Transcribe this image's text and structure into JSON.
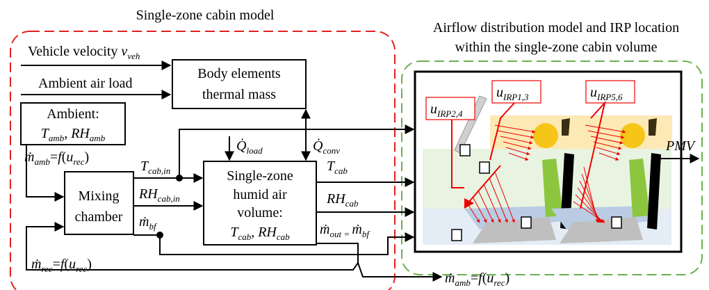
{
  "left_title": "Single-zone cabin model",
  "right_title": [
    "Airflow distribution model and IRP location",
    "within the single-zone cabin volume"
  ],
  "inputs": {
    "velocity": [
      "Vehicle velocity ",
      "v",
      "veh"
    ],
    "air_load": "Ambient air load"
  },
  "body_block": [
    "Body elements",
    "thermal mass"
  ],
  "ambient_block": {
    "heading": "Ambient:",
    "vars": [
      "T",
      "amb",
      ", ",
      "RH",
      "amb"
    ]
  },
  "m_amb_in": [
    "ṁ",
    "amb",
    "=",
    "f",
    "(",
    "u",
    "rec",
    ")"
  ],
  "mixing_block": [
    "Mixing",
    "chamber"
  ],
  "t_cab_in": [
    "T",
    "cab,in"
  ],
  "rh_cab_in": [
    "RH",
    "cab,in"
  ],
  "m_bf": [
    "ṁ",
    "bf"
  ],
  "q_load": [
    "Q̇",
    "load"
  ],
  "q_conv": [
    "Q̇",
    "conv"
  ],
  "humid_block": {
    "lines": [
      "Single-zone",
      "humid air",
      "volume:"
    ],
    "vars": [
      "T",
      "cab",
      ", ",
      "RH",
      "cab"
    ]
  },
  "t_cab": [
    "T",
    "cab"
  ],
  "rh_cab": [
    "RH",
    "cab"
  ],
  "m_out": [
    "ṁ",
    "out",
    " = ",
    "ṁ",
    "bf"
  ],
  "m_rec": [
    "ṁ",
    "rec",
    "=",
    "f",
    "(",
    "u",
    "rec",
    ")"
  ],
  "m_amb_out": [
    "ṁ",
    "amb",
    "=",
    "f",
    "(",
    "u",
    "rec",
    ")"
  ],
  "irp": {
    "a": [
      "u",
      "IRP2,4"
    ],
    "b": [
      "u",
      "IRP1,3"
    ],
    "c": [
      "u",
      "IRP5,6"
    ]
  },
  "pmv": "PMV"
}
